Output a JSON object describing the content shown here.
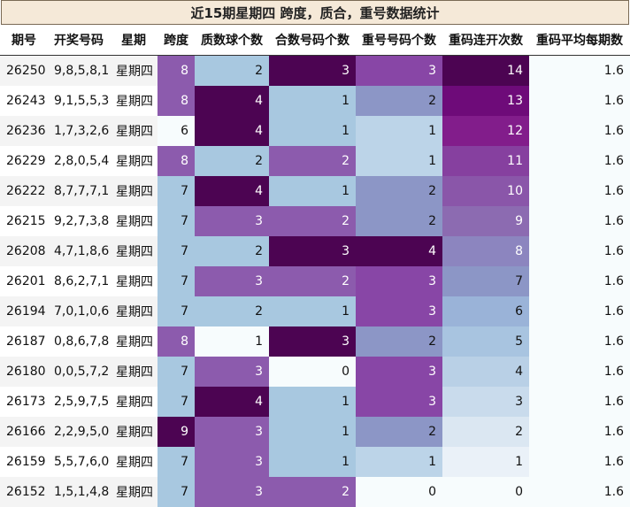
{
  "title": "近15期星期四 跨度，质合，重号数据统计",
  "headers": [
    "期号",
    "开奖号码",
    "星期",
    "跨度",
    "质数球个数",
    "合数号码个数",
    "重号号码个数",
    "重码连开次数",
    "重码平均每期数"
  ],
  "rows": [
    [
      "26250",
      "9,8,5,8,1",
      "星期四",
      "8",
      "2",
      "3",
      "3",
      "14",
      "1.6"
    ],
    [
      "26243",
      "9,1,5,5,3",
      "星期四",
      "8",
      "4",
      "1",
      "2",
      "13",
      "1.6"
    ],
    [
      "26236",
      "1,7,3,2,6",
      "星期四",
      "6",
      "4",
      "1",
      "1",
      "12",
      "1.6"
    ],
    [
      "26229",
      "2,8,0,5,4",
      "星期四",
      "8",
      "2",
      "2",
      "1",
      "11",
      "1.6"
    ],
    [
      "26222",
      "8,7,7,7,1",
      "星期四",
      "7",
      "4",
      "1",
      "2",
      "10",
      "1.6"
    ],
    [
      "26215",
      "9,2,7,3,8",
      "星期四",
      "7",
      "3",
      "2",
      "2",
      "9",
      "1.6"
    ],
    [
      "26208",
      "4,7,1,8,6",
      "星期四",
      "7",
      "2",
      "3",
      "4",
      "8",
      "1.6"
    ],
    [
      "26201",
      "8,6,2,7,1",
      "星期四",
      "7",
      "3",
      "2",
      "3",
      "7",
      "1.6"
    ],
    [
      "26194",
      "7,0,1,0,6",
      "星期四",
      "7",
      "2",
      "1",
      "3",
      "6",
      "1.6"
    ],
    [
      "26187",
      "0,8,6,7,8",
      "星期四",
      "8",
      "1",
      "3",
      "2",
      "5",
      "1.6"
    ],
    [
      "26180",
      "0,0,5,7,2",
      "星期四",
      "7",
      "3",
      "0",
      "3",
      "4",
      "1.6"
    ],
    [
      "26173",
      "2,5,9,7,5",
      "星期四",
      "7",
      "4",
      "1",
      "3",
      "3",
      "1.6"
    ],
    [
      "26166",
      "2,2,9,5,0",
      "星期四",
      "9",
      "3",
      "1",
      "2",
      "2",
      "1.6"
    ],
    [
      "26159",
      "5,5,7,6,0",
      "星期四",
      "7",
      "3",
      "1",
      "1",
      "1",
      "1.6"
    ],
    [
      "26152",
      "1,5,1,4,8",
      "星期四",
      "7",
      "3",
      "2",
      "0",
      "0",
      "1.6"
    ]
  ],
  "colors": {
    "span": {
      "6": "#f7fcfd",
      "7": "#a8c8e0",
      "8": "#8c5bad",
      "9": "#4c0452"
    },
    "prime": {
      "1": "#f7fcfd",
      "2": "#a8c8e0",
      "3": "#8c5bad",
      "4": "#4c0452"
    },
    "composite": {
      "0": "#f7fcfd",
      "1": "#a8c8e0",
      "2": "#8c5bad",
      "3": "#4c0452"
    },
    "repeat": {
      "0": "#f7fcfd",
      "1": "#bcd4e8",
      "2": "#8c96c6",
      "3": "#8846a6",
      "4": "#4c0452"
    },
    "streak": [
      "#f7fcfd",
      "#e6eff7",
      "#d9e5f1",
      "#c9dbeb",
      "#b6ceе5",
      "#a8c8e0",
      "#96b3d9",
      "#8c96c6",
      "#8c80bd",
      "#8c6bb1",
      "#8a52a8",
      "#85399e",
      "#821a8a",
      "#6d0a78",
      "#4c0452"
    ],
    "avg": "#f7fcfd"
  }
}
